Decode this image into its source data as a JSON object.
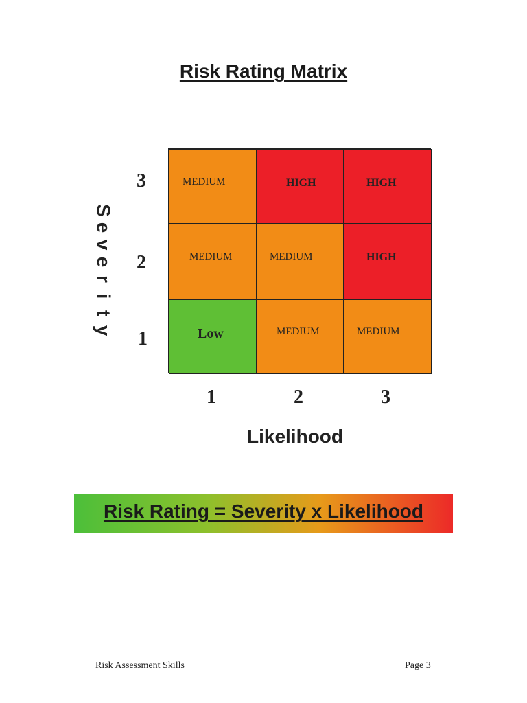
{
  "title": "Risk Rating Matrix",
  "axes": {
    "severity_label": "Severity",
    "likelihood_label": "Likelihood",
    "severity_ticks": [
      "3",
      "2",
      "1"
    ],
    "likelihood_ticks": [
      "1",
      "2",
      "3"
    ]
  },
  "matrix": {
    "rows": [
      [
        "MEDIUM",
        "HIGH",
        "HIGH"
      ],
      [
        "MEDIUM",
        "MEDIUM",
        "HIGH"
      ],
      [
        "Low",
        "MEDIUM",
        "MEDIUM"
      ]
    ]
  },
  "colors": {
    "low": "#5fbf35",
    "medium": "#f28c16",
    "high": "#ec1f28"
  },
  "banner": {
    "text": "Risk Rating = Severity x Likelihood"
  },
  "footer": {
    "left": "Risk Assessment Skills",
    "right": "Page 3"
  }
}
